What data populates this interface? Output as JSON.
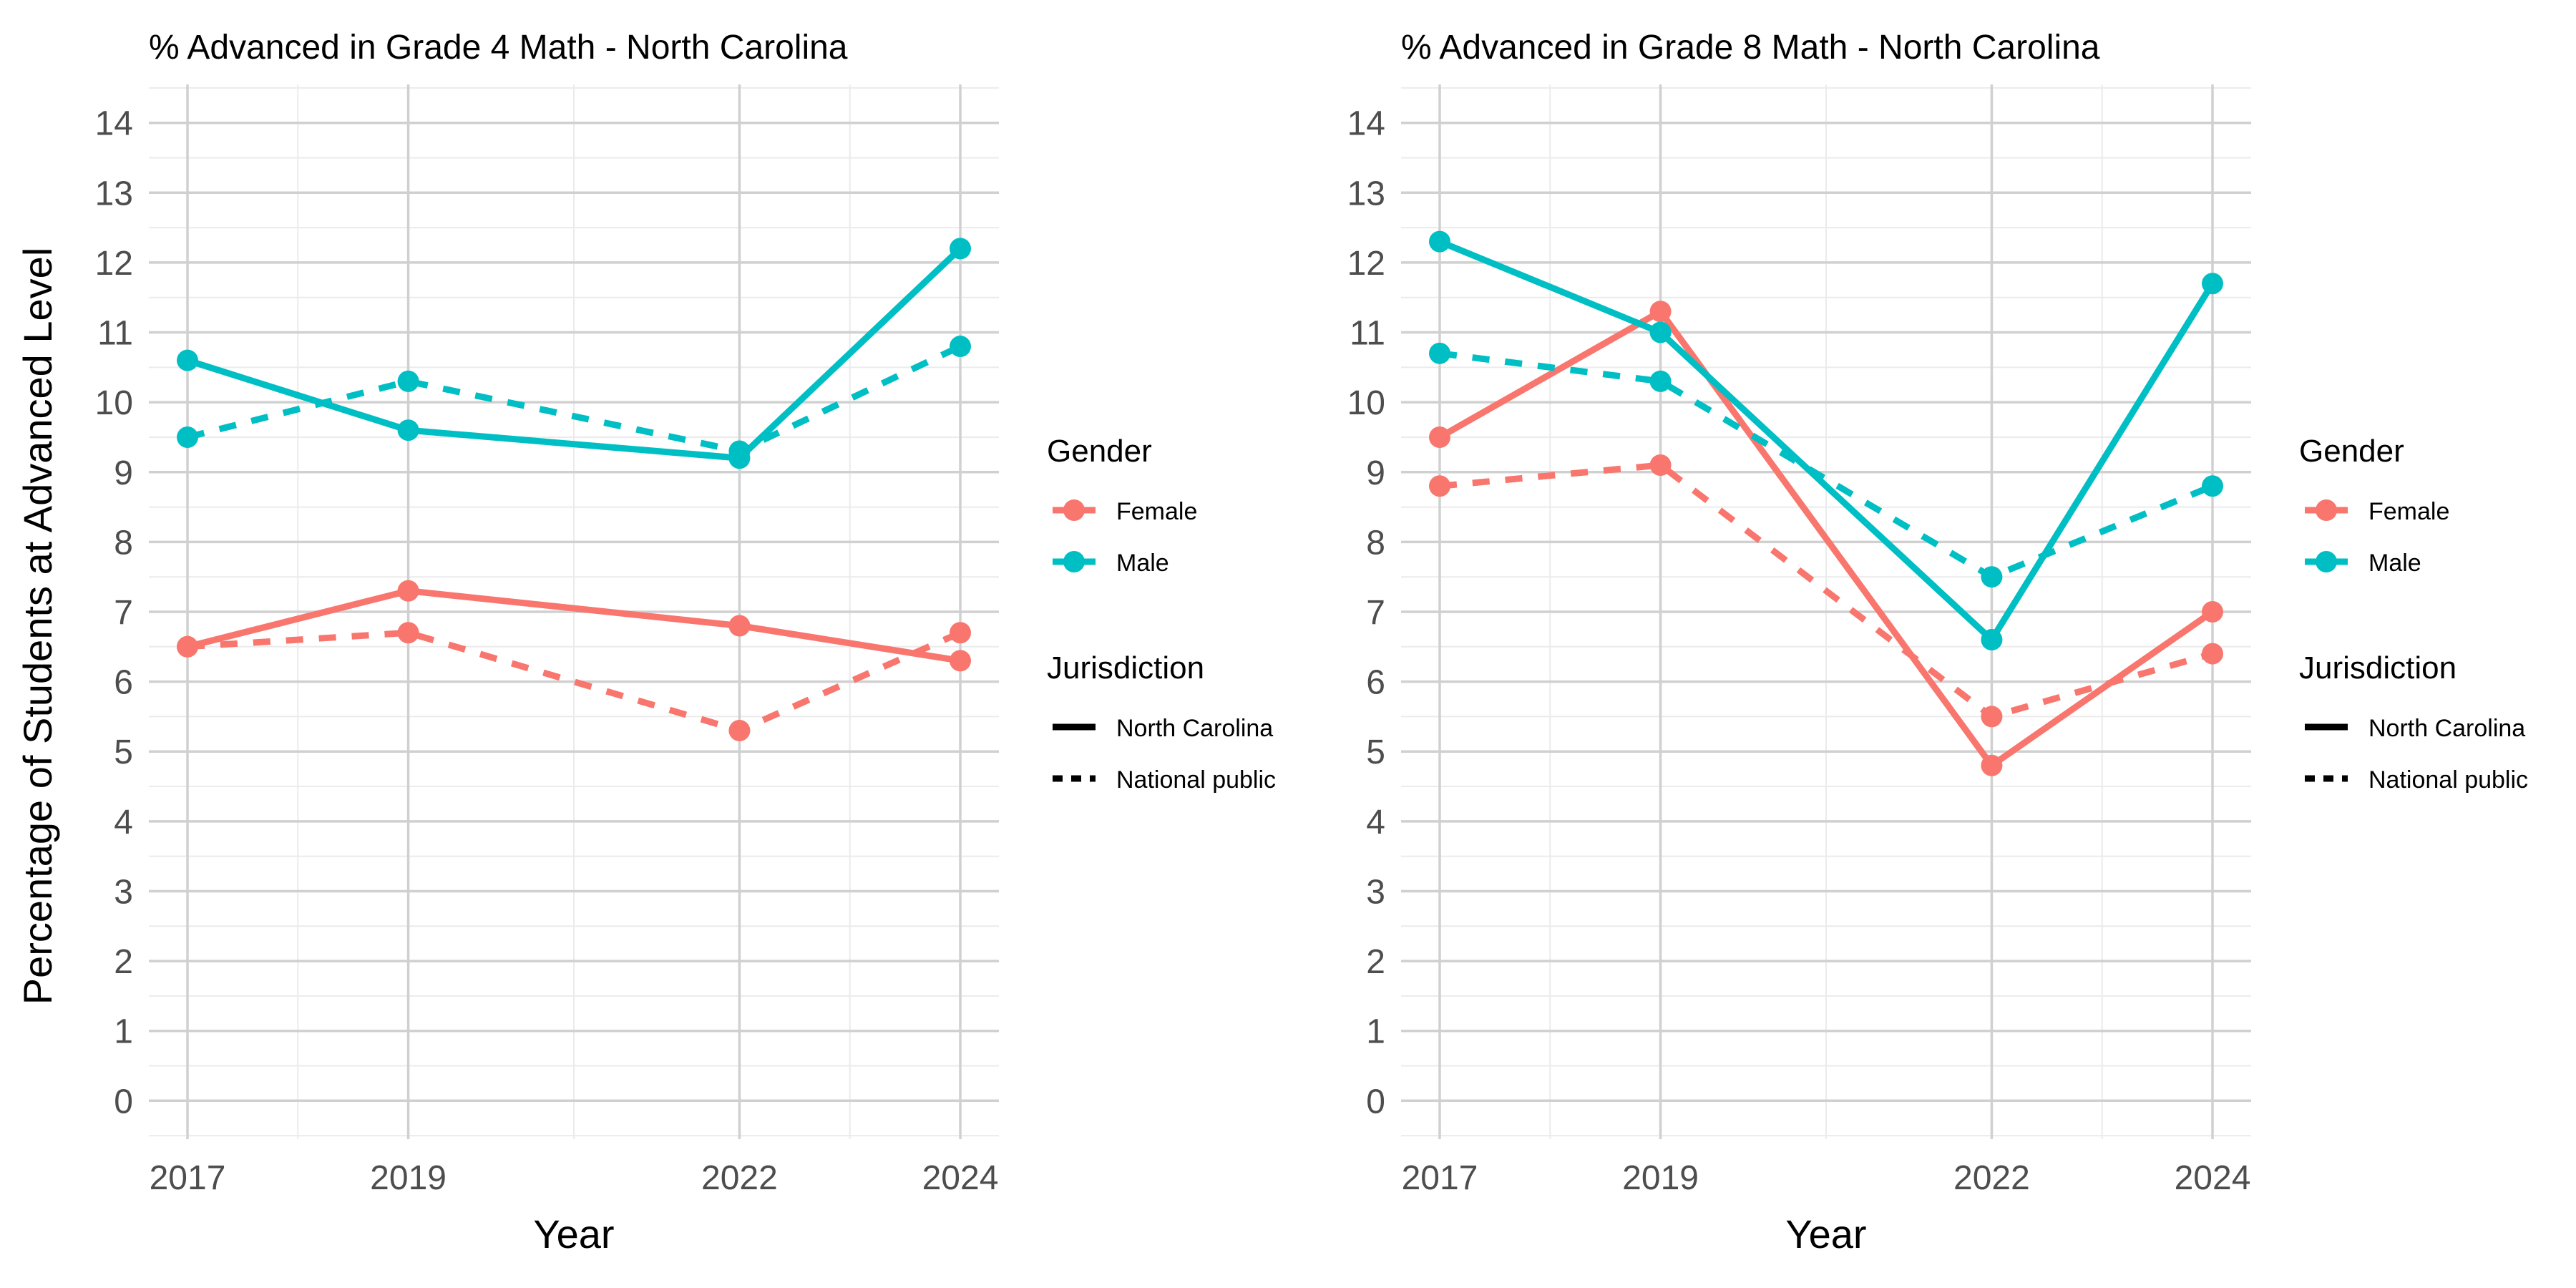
{
  "y_axis_label": "Percentage of Students at Advanced Level",
  "colors": {
    "Female": "#F8766D",
    "Male": "#00BFC4"
  },
  "legend": {
    "gender_title": "Gender",
    "gender_items": [
      "Female",
      "Male"
    ],
    "jurisdiction_title": "Jurisdiction",
    "jurisdiction_items": [
      "North Carolina",
      "National public"
    ]
  },
  "chart_data": [
    {
      "type": "line",
      "title": "% Advanced in Grade 4 Math - North Carolina",
      "xlabel": "Year",
      "ylabel": "Percentage of Students at Advanced Level",
      "x": [
        2017,
        2019,
        2022,
        2024
      ],
      "xlim": [
        2016.65,
        2024.35
      ],
      "ylim": [
        -0.55,
        14.55
      ],
      "y_ticks": [
        0,
        1,
        2,
        3,
        4,
        5,
        6,
        7,
        8,
        9,
        10,
        11,
        12,
        13,
        14
      ],
      "grid": true,
      "legend_position": "right",
      "series": [
        {
          "name": "Female",
          "jurisdiction": "North Carolina",
          "values": [
            6.5,
            7.3,
            6.8,
            6.3
          ]
        },
        {
          "name": "Female",
          "jurisdiction": "National public",
          "values": [
            6.5,
            6.7,
            5.3,
            6.7
          ]
        },
        {
          "name": "Male",
          "jurisdiction": "North Carolina",
          "values": [
            10.6,
            9.6,
            9.2,
            12.2
          ]
        },
        {
          "name": "Male",
          "jurisdiction": "National public",
          "values": [
            9.5,
            10.3,
            9.3,
            10.8
          ]
        }
      ]
    },
    {
      "type": "line",
      "title": "% Advanced in Grade 8 Math - North Carolina",
      "xlabel": "Year",
      "ylabel": "",
      "x": [
        2017,
        2019,
        2022,
        2024
      ],
      "xlim": [
        2016.65,
        2024.35
      ],
      "ylim": [
        -0.55,
        14.55
      ],
      "y_ticks": [
        0,
        1,
        2,
        3,
        4,
        5,
        6,
        7,
        8,
        9,
        10,
        11,
        12,
        13,
        14
      ],
      "grid": true,
      "legend_position": "right",
      "series": [
        {
          "name": "Female",
          "jurisdiction": "North Carolina",
          "values": [
            9.5,
            11.3,
            4.8,
            7.0
          ]
        },
        {
          "name": "Female",
          "jurisdiction": "National public",
          "values": [
            8.8,
            9.1,
            5.5,
            6.4
          ]
        },
        {
          "name": "Male",
          "jurisdiction": "North Carolina",
          "values": [
            12.3,
            11.0,
            6.6,
            11.7
          ]
        },
        {
          "name": "Male",
          "jurisdiction": "National public",
          "values": [
            10.7,
            10.3,
            7.5,
            8.8
          ]
        }
      ]
    }
  ]
}
